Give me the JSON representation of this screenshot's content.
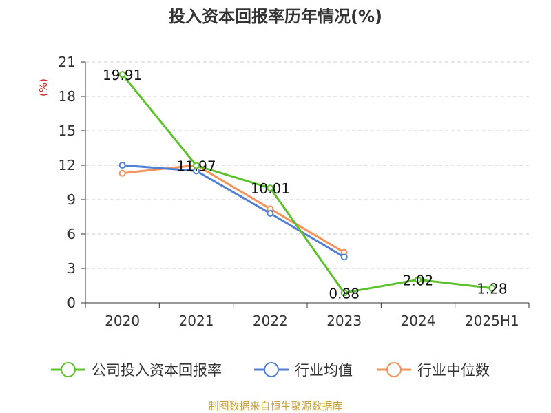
{
  "chart_data": {
    "type": "line",
    "title": "投入资本回报率历年情况(%)",
    "ylabel": "(%)",
    "xlabel": "",
    "categories": [
      "2020",
      "2021",
      "2022",
      "2023",
      "2024",
      "2025H1"
    ],
    "ylim": [
      0,
      21
    ],
    "yticks": [
      0,
      3,
      6,
      9,
      12,
      15,
      18,
      21
    ],
    "grid": true,
    "legend_position": "bottom",
    "series": [
      {
        "name": "公司投入资本回报率",
        "color": "#5cc12b",
        "values": [
          19.91,
          11.97,
          10.01,
          0.88,
          2.02,
          1.28
        ],
        "labels": [
          "19.91",
          "11.97",
          "10.01",
          "0.88",
          "2.02",
          "1.28"
        ]
      },
      {
        "name": "行业均值",
        "color": "#4f7fd6",
        "values": [
          12.0,
          11.5,
          7.8,
          4.0,
          null,
          null
        ]
      },
      {
        "name": "行业中位数",
        "color": "#f5925a",
        "values": [
          11.3,
          12.0,
          8.2,
          4.4,
          null,
          null
        ]
      }
    ]
  },
  "colors": {
    "ylabel": "#cc2222",
    "source": "#c8a038",
    "grid": "#cccccc",
    "axis": "#333333"
  },
  "footer": {
    "source": "制图数据来自恒生聚源数据库"
  }
}
